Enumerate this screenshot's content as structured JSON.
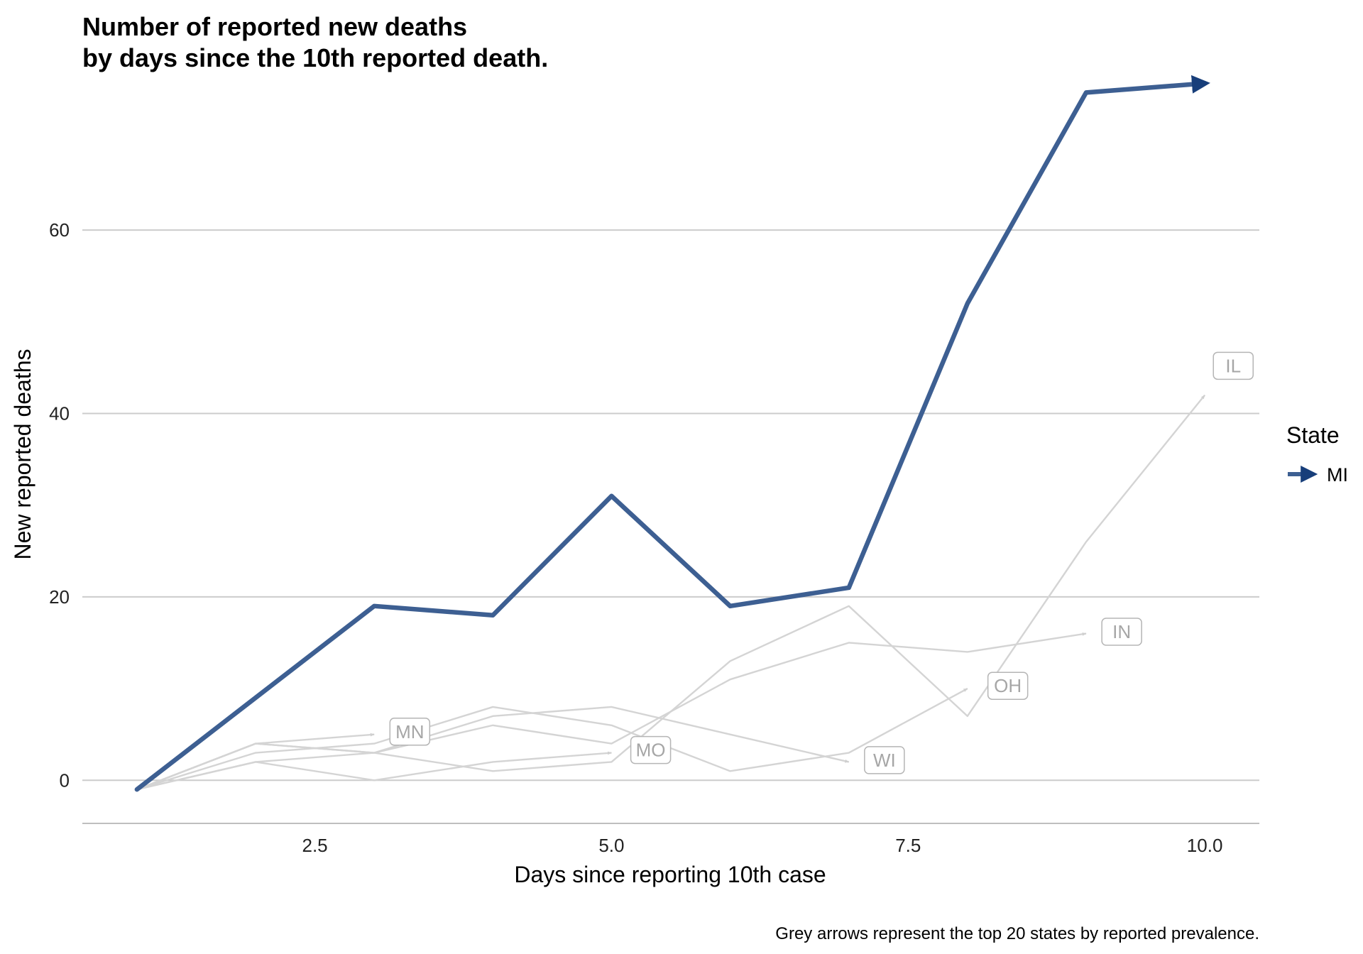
{
  "title_lines": [
    "Number of reported new deaths",
    "by days since the 10th reported death."
  ],
  "caption": "Grey arrows represent the top 20 states by reported prevalence.",
  "colors": {
    "highlight": "#3d5f92",
    "grey_line": "#d4d4d4",
    "grey_label": "#a6a6a6",
    "grid": "#cccccc"
  },
  "chart_data": {
    "type": "line",
    "title": "Number of reported new deaths\nby days since the 10th reported death.",
    "xlabel": "Days since reporting 10th case",
    "ylabel": "New reported deaths",
    "xlim": [
      0.54,
      10.46
    ],
    "ylim": [
      -4.7,
      75.8
    ],
    "x_ticks": [
      2.5,
      5.0,
      7.5,
      10.0
    ],
    "x_tick_labels": [
      "2.5",
      "5.0",
      "7.5",
      "10.0"
    ],
    "y_ticks": [
      0,
      20,
      40,
      60
    ],
    "y_tick_labels": [
      "0",
      "20",
      "40",
      "60"
    ],
    "grid": "horizontal",
    "legend": {
      "title": "State",
      "position": "right",
      "entries": [
        "MI"
      ]
    },
    "highlight_series": {
      "name": "MI",
      "x": [
        1,
        2,
        3,
        4,
        5,
        6,
        7,
        8,
        9,
        10
      ],
      "values": [
        -1,
        9,
        19,
        18,
        31,
        19,
        21,
        52,
        75,
        76
      ]
    },
    "grey_series": [
      {
        "name": "MN",
        "x": [
          1,
          2,
          3
        ],
        "values": [
          -1,
          4,
          5
        ]
      },
      {
        "name": "MO",
        "x": [
          1,
          2,
          3,
          4,
          5
        ],
        "values": [
          -1,
          2,
          0,
          2,
          3
        ]
      },
      {
        "name": "WI",
        "x": [
          1,
          2,
          3,
          4,
          5,
          6,
          7
        ],
        "values": [
          -1,
          2,
          3,
          7,
          8,
          5,
          2
        ]
      },
      {
        "name": "OH",
        "x": [
          1,
          2,
          3,
          4,
          5,
          6,
          7,
          8
        ],
        "values": [
          -1,
          3,
          4,
          8,
          6,
          1,
          3,
          10
        ]
      },
      {
        "name": "IN",
        "x": [
          1,
          2,
          3,
          4,
          5,
          6,
          7,
          8,
          9
        ],
        "values": [
          -1,
          4,
          3,
          6,
          4,
          11,
          15,
          14,
          16
        ]
      },
      {
        "name": "IL",
        "x": [
          1,
          2,
          3,
          4,
          5,
          6,
          7,
          8,
          9,
          10
        ],
        "values": [
          -1,
          4,
          3,
          1,
          2,
          13,
          19,
          7,
          26,
          42
        ]
      }
    ],
    "annotations": [
      {
        "label": "MN",
        "x": 3.3,
        "y": 5.3
      },
      {
        "label": "MO",
        "x": 5.33,
        "y": 3.3
      },
      {
        "label": "WI",
        "x": 7.3,
        "y": 2.2
      },
      {
        "label": "OH",
        "x": 8.34,
        "y": 10.3
      },
      {
        "label": "IN",
        "x": 9.3,
        "y": 16.2
      },
      {
        "label": "IL",
        "x": 10.24,
        "y": 45.2
      }
    ]
  }
}
